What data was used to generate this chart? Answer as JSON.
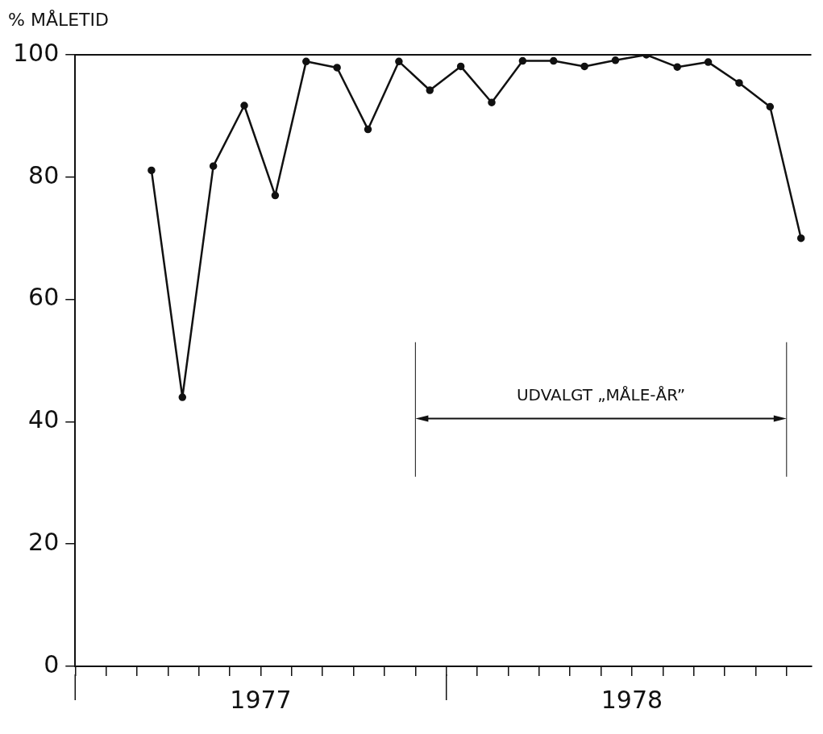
{
  "chart_data": {
    "type": "line",
    "ylabel": "% MÅLETID",
    "x": [
      "1977-03-15",
      "1977-04-15",
      "1977-05-15",
      "1977-06-15",
      "1977-07-15",
      "1977-08-15",
      "1977-09-15",
      "1977-10-15",
      "1977-11-15",
      "1977-12-15",
      "1978-01-15",
      "1978-02-15",
      "1978-03-15",
      "1978-04-15",
      "1978-05-15",
      "1978-06-15",
      "1978-07-15",
      "1978-08-15",
      "1978-09-15",
      "1978-10-15",
      "1978-11-15",
      "1978-12-15"
    ],
    "series": [
      {
        "color": "#111111",
        "values": [
          81.1,
          44.0,
          81.8,
          91.7,
          77.0,
          98.9,
          97.9,
          87.8,
          98.9,
          94.2,
          98.1,
          92.2,
          99.0,
          99.0,
          98.1,
          99.1,
          100.0,
          98.0,
          98.8,
          95.4,
          91.5,
          70.0
        ]
      }
    ],
    "marker": "circle",
    "line_style": "solid",
    "grid": false,
    "legend": false,
    "ylim": [
      0,
      100
    ],
    "yticks": [
      0,
      20,
      40,
      60,
      80,
      100
    ],
    "xlim": [
      "1977-01",
      "1978-12-25"
    ],
    "xticks": [
      {
        "value": "1977-01",
        "label": null
      },
      {
        "value": "1977-02",
        "label": null
      },
      {
        "value": "1977-03",
        "label": null
      },
      {
        "value": "1977-04",
        "label": null
      },
      {
        "value": "1977-05",
        "label": null
      },
      {
        "value": "1977-06",
        "label": null
      },
      {
        "value": "1977-07",
        "label": "1977"
      },
      {
        "value": "1977-08",
        "label": null
      },
      {
        "value": "1977-09",
        "label": null
      },
      {
        "value": "1977-10",
        "label": null
      },
      {
        "value": "1977-11",
        "label": null
      },
      {
        "value": "1977-12",
        "label": null
      },
      {
        "value": "1978-01",
        "label": null
      },
      {
        "value": "1978-02",
        "label": null
      },
      {
        "value": "1978-03",
        "label": null
      },
      {
        "value": "1978-04",
        "label": null
      },
      {
        "value": "1978-05",
        "label": null
      },
      {
        "value": "1978-06",
        "label": null
      },
      {
        "value": "1978-07",
        "label": "1978"
      },
      {
        "value": "1978-08",
        "label": null
      },
      {
        "value": "1978-09",
        "label": null
      },
      {
        "value": "1978-10",
        "label": null
      },
      {
        "value": "1978-11",
        "label": null
      },
      {
        "value": "1978-12",
        "label": null
      }
    ],
    "ref_lines": [
      {
        "axis": "x",
        "value": "1977-12"
      },
      {
        "axis": "x",
        "value": "1978-12"
      }
    ],
    "annotations": [
      "UDVALGT „MÅLE-ÅR”"
    ]
  }
}
